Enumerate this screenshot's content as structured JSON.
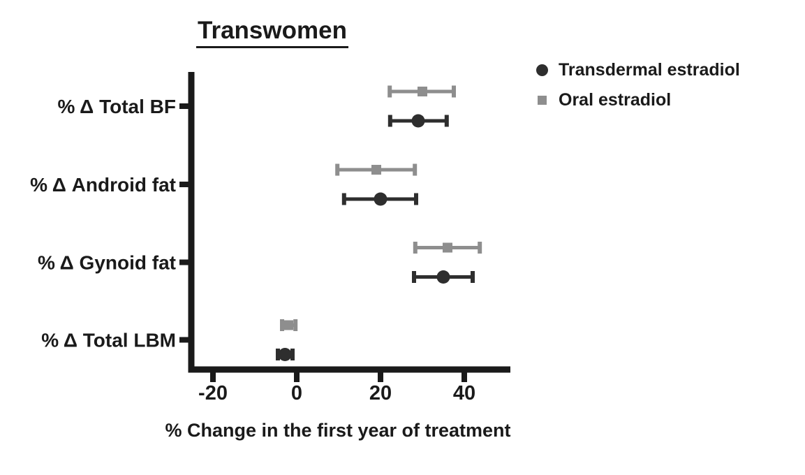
{
  "colors": {
    "axis": "#1a1a1a",
    "text": "#1a1a1a",
    "transdermal": "#2e2e2e",
    "oral": "#8e8e8e"
  },
  "chart_data": {
    "type": "scatter",
    "subtype": "horizontal-dot-plot-with-error-bars",
    "title": "Transwomen",
    "xlabel": "% Change in the first year of treatment",
    "ylabel": "",
    "categories": [
      "% Δ Total BF",
      "% Δ Android fat",
      "% Δ Gynoid fat",
      "% Δ Total LBM"
    ],
    "xticks": [
      -20,
      0,
      20,
      40
    ],
    "xlim": [
      -26,
      51
    ],
    "grid": false,
    "error_bars": true,
    "legend_position": "top-right",
    "series": [
      {
        "name": "Transdermal estradiol",
        "marker": "circle",
        "color": "#2e2e2e",
        "points": [
          {
            "category": "% Δ Total BF",
            "value": 29,
            "lo": 22.3,
            "hi": 35.8
          },
          {
            "category": "% Δ Android fat",
            "value": 20,
            "lo": 11.3,
            "hi": 28.5
          },
          {
            "category": "% Δ Gynoid fat",
            "value": 35,
            "lo": 28,
            "hi": 42
          },
          {
            "category": "% Δ Total LBM",
            "value": -2.8,
            "lo": -4.5,
            "hi": -1
          }
        ]
      },
      {
        "name": "Oral estradiol",
        "marker": "square",
        "color": "#8e8e8e",
        "points": [
          {
            "category": "% Δ Total BF",
            "value": 30,
            "lo": 22.2,
            "hi": 37.5
          },
          {
            "category": "% Δ Android fat",
            "value": 19,
            "lo": 9.7,
            "hi": 28.2
          },
          {
            "category": "% Δ Gynoid fat",
            "value": 36,
            "lo": 28.3,
            "hi": 43.7
          },
          {
            "category": "% Δ Total LBM",
            "value": -2,
            "lo": -3.5,
            "hi": -0.3
          }
        ]
      }
    ]
  }
}
